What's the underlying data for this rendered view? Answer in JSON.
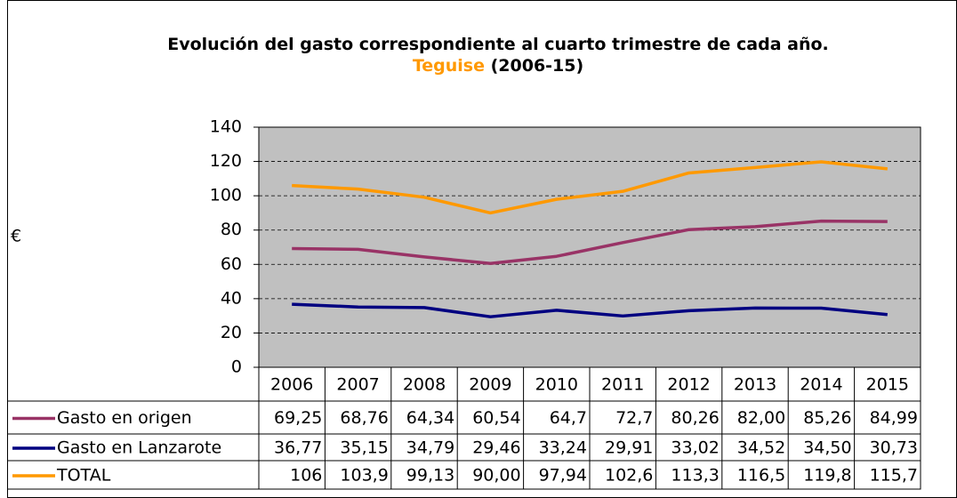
{
  "chart_data": {
    "type": "line",
    "title": "Evolución del gasto correspondiente al cuarto trimestre de cada año.",
    "title_highlight": "Teguise",
    "title_suffix": "(2006-15)",
    "y_label": "€",
    "categories": [
      "2006",
      "2007",
      "2008",
      "2009",
      "2010",
      "2011",
      "2012",
      "2013",
      "2014",
      "2015"
    ],
    "series": [
      {
        "name": "Gasto en origen",
        "color": "#993366",
        "values": [
          69.25,
          68.76,
          64.34,
          60.54,
          64.7,
          72.7,
          80.26,
          82.0,
          85.26,
          84.99
        ],
        "value_labels": [
          "69,25",
          "68,76",
          "64,34",
          "60,54",
          "64,7",
          "72,7",
          "80,26",
          "82,00",
          "85,26",
          "84,99"
        ]
      },
      {
        "name": "Gasto en Lanzarote",
        "color": "#000080",
        "values": [
          36.77,
          35.15,
          34.79,
          29.46,
          33.24,
          29.91,
          33.02,
          34.52,
          34.5,
          30.73
        ],
        "value_labels": [
          "36,77",
          "35,15",
          "34,79",
          "29,46",
          "33,24",
          "29,91",
          "33,02",
          "34,52",
          "34,50",
          "30,73"
        ]
      },
      {
        "name": "TOTAL",
        "color": "#ff9900",
        "values": [
          106,
          103.9,
          99.13,
          90.0,
          97.94,
          102.6,
          113.3,
          116.5,
          119.8,
          115.7
        ],
        "value_labels": [
          "106",
          "103,9",
          "99,13",
          "90,00",
          "97,94",
          "102,6",
          "113,3",
          "116,5",
          "119,8",
          "115,7"
        ]
      }
    ],
    "ylim": [
      0,
      140
    ],
    "yticks": [
      0,
      20,
      40,
      60,
      80,
      100,
      120,
      140
    ],
    "grid": true,
    "plot_background": "#c0c0c0"
  }
}
